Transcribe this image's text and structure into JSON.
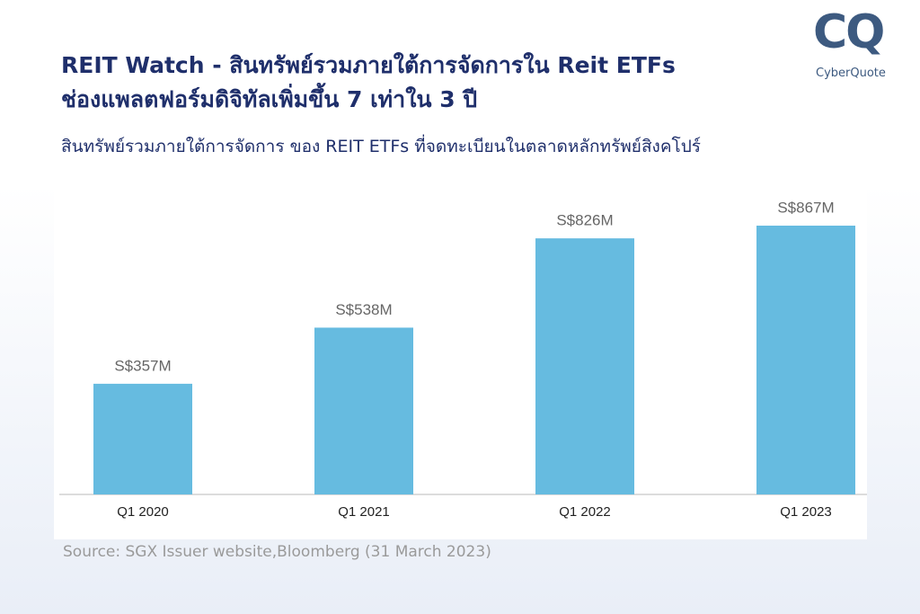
{
  "logo": {
    "mark": "CQ",
    "name": "CyberQuote"
  },
  "chart_data": {
    "type": "bar",
    "title": [
      "REIT Watch - สินทรัพย์รวมภายใต้การจัดการใน Reit ETFs",
      "ช่องแพลตฟอร์มดิจิทัลเพิ่มขึ้น 7 เท่าใน 3 ปี"
    ],
    "subtitle": "สินทรัพย์รวมภายใต้การจัดการ ของ  REIT ETFs ที่จดทะเบียนในตลาดหลักทรัพย์สิงคโปร์",
    "categories": [
      "Q1 2020",
      "Q1 2021",
      "Q1 2022",
      "Q1 2023"
    ],
    "values": [
      357,
      538,
      826,
      867
    ],
    "value_labels": [
      "S$357M",
      "S$538M",
      "S$826M",
      "S$867M"
    ],
    "color": "#66bbe0",
    "source": "Source: SGX Issuer website,Bloomberg (31 March 2023)"
  }
}
